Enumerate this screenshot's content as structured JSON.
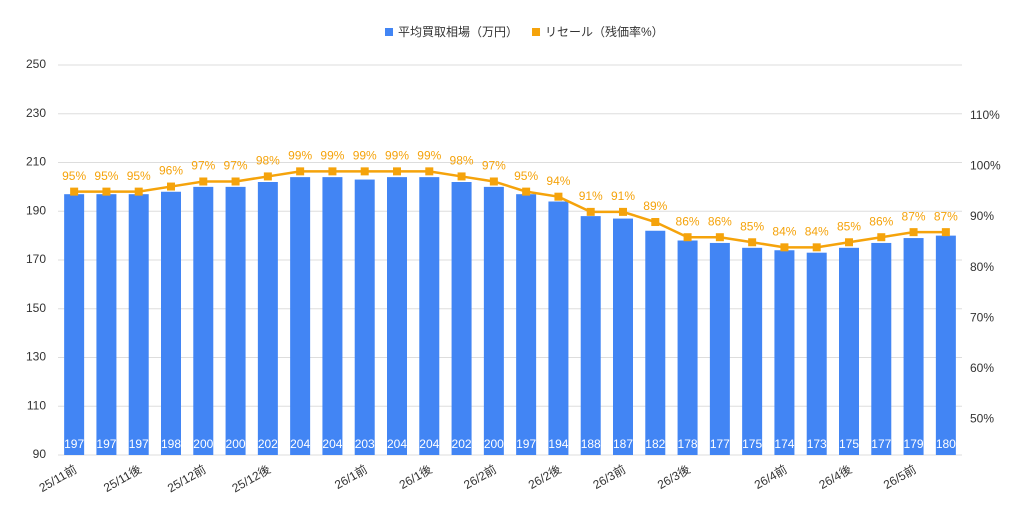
{
  "chart_data": {
    "type": "bar_line",
    "categories": [
      "25/11前",
      null,
      "25/11後",
      null,
      "25/12前",
      null,
      "25/12後",
      null,
      null,
      "26/1前",
      null,
      "26/1後",
      null,
      "26/2前",
      null,
      "26/2後",
      null,
      "26/3前",
      null,
      "26/3後",
      null,
      null,
      "26/4前",
      null,
      "26/4後",
      null,
      "26/5前",
      null
    ],
    "series": [
      {
        "name": "平均買取相場（万円）",
        "color": "#4285f4",
        "values": [
          197,
          197,
          197,
          198,
          200,
          200,
          202,
          204,
          204,
          203,
          204,
          204,
          202,
          200,
          197,
          194,
          188,
          187,
          182,
          178,
          177,
          175,
          174,
          173,
          175,
          177,
          179,
          180
        ]
      },
      {
        "name": "リセール（残価率%）",
        "color": "#f5a30b",
        "axis": "y2",
        "values": [
          95,
          95,
          95,
          96,
          97,
          97,
          98,
          99,
          99,
          99,
          99,
          99,
          98,
          97,
          95,
          94,
          91,
          91,
          89,
          86,
          86,
          85,
          84,
          84,
          85,
          86,
          87,
          87
        ],
        "value_labels": [
          "95%",
          "95%",
          "95%",
          "96%",
          "97%",
          "97%",
          "98%",
          "99%",
          "99%",
          "99%",
          "99%",
          "99%",
          "98%",
          "97%",
          "95%",
          "94%",
          "91%",
          "91%",
          "89%",
          "86%",
          "86%",
          "85%",
          "84%",
          "84%",
          "85%",
          "86%",
          "87%",
          "87%"
        ]
      }
    ],
    "ylim": [
      90,
      250
    ],
    "yticks": [
      90,
      110,
      130,
      150,
      170,
      190,
      210,
      230,
      250
    ],
    "y2lim": [
      43,
      120
    ],
    "y2ticks": [
      {
        "value": 50,
        "label": "50%"
      },
      {
        "value": 60,
        "label": "60%"
      },
      {
        "value": 70,
        "label": "70%"
      },
      {
        "value": 80,
        "label": "80%"
      },
      {
        "value": 90,
        "label": "90%"
      },
      {
        "value": 100,
        "label": "100%"
      },
      {
        "value": 110,
        "label": "110%"
      }
    ],
    "grid": true,
    "legend": "top"
  }
}
